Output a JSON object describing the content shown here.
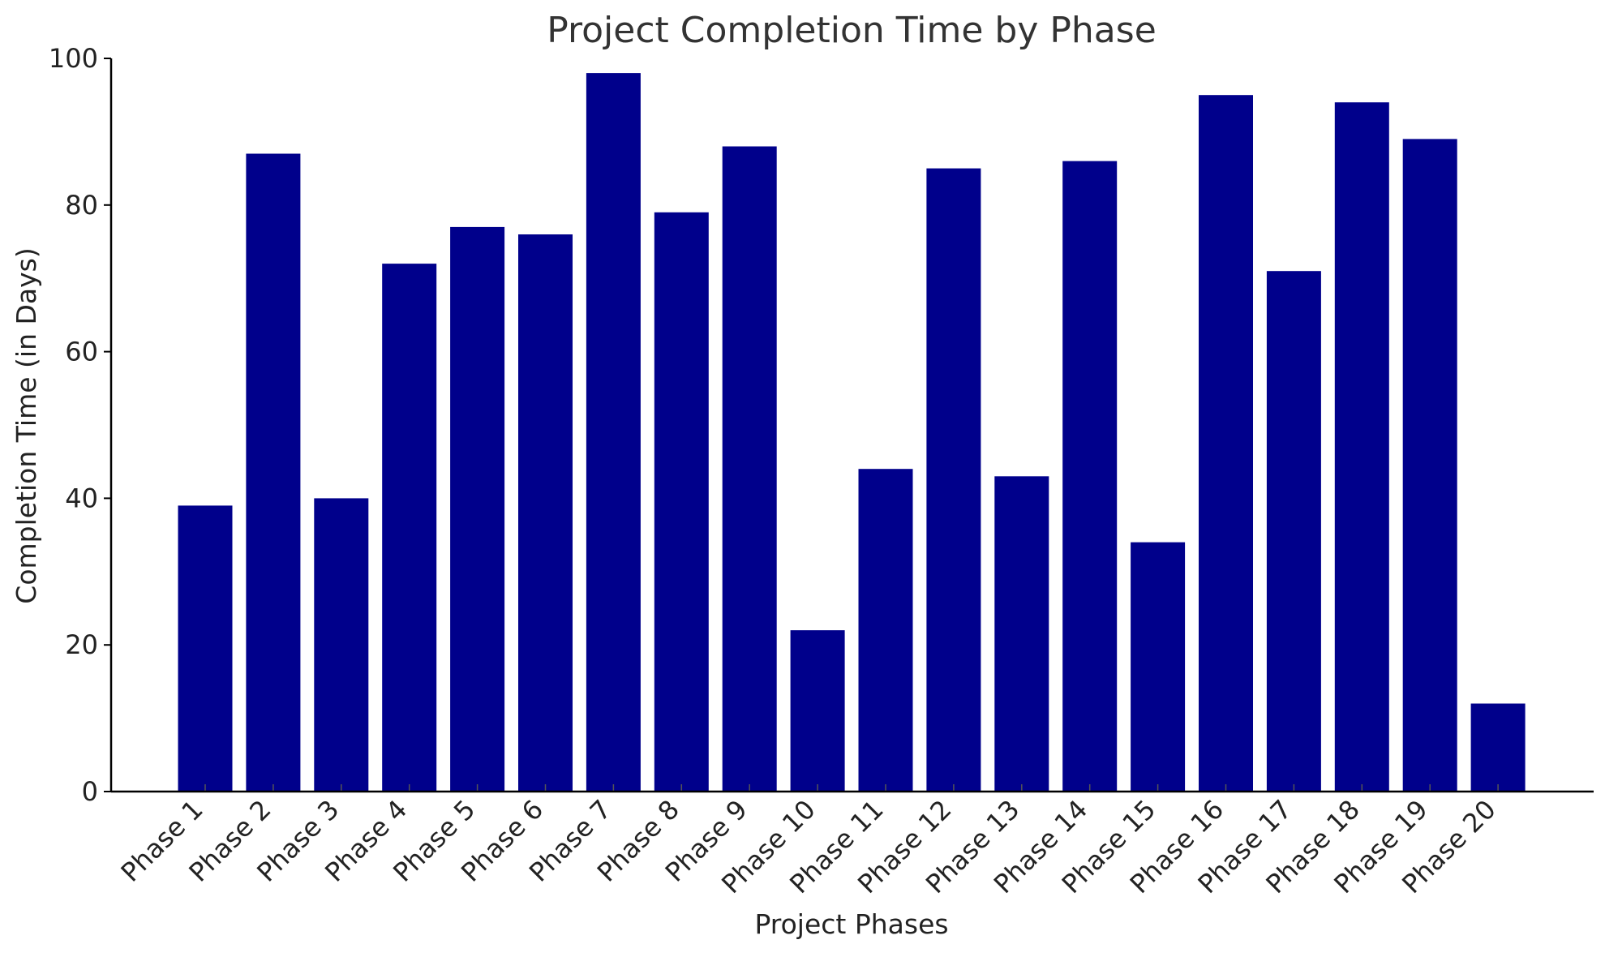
{
  "chart_data": {
    "type": "bar",
    "title": "Project Completion Time by Phase",
    "xlabel": "Project Phases",
    "ylabel": "Completion Time (in Days)",
    "ylim": [
      0,
      100
    ],
    "yticks": [
      0,
      20,
      40,
      60,
      80,
      100
    ],
    "grid": false,
    "bar_color": "#00008b",
    "categories": [
      "Phase 1",
      "Phase 2",
      "Phase 3",
      "Phase 4",
      "Phase 5",
      "Phase 6",
      "Phase 7",
      "Phase 8",
      "Phase 9",
      "Phase 10",
      "Phase 11",
      "Phase 12",
      "Phase 13",
      "Phase 14",
      "Phase 15",
      "Phase 16",
      "Phase 17",
      "Phase 18",
      "Phase 19",
      "Phase 20"
    ],
    "values": [
      39,
      87,
      40,
      72,
      77,
      76,
      98,
      79,
      88,
      22,
      44,
      85,
      43,
      86,
      34,
      95,
      71,
      94,
      89,
      12
    ]
  }
}
